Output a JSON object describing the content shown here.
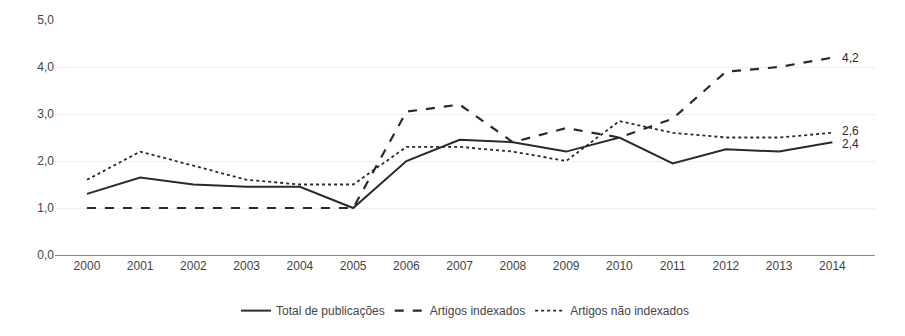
{
  "chart_data": {
    "type": "line",
    "x": [
      2000,
      2001,
      2002,
      2003,
      2004,
      2005,
      2006,
      2007,
      2008,
      2009,
      2010,
      2011,
      2012,
      2013,
      2014
    ],
    "series": [
      {
        "name": "Total de publicações",
        "color": "#2a2a2a",
        "line_style": "solid",
        "values": [
          1.3,
          1.65,
          1.5,
          1.45,
          1.45,
          1.0,
          2.0,
          2.45,
          2.4,
          2.2,
          2.5,
          1.95,
          2.25,
          2.2,
          2.4
        ]
      },
      {
        "name": "Artigos indexados",
        "color": "#2a2a2a",
        "line_style": "dashed",
        "values": [
          1.0,
          1.0,
          1.0,
          1.0,
          1.0,
          1.0,
          3.05,
          3.2,
          2.4,
          2.7,
          2.5,
          2.9,
          3.9,
          4.0,
          4.2
        ]
      },
      {
        "name": "Artigos não indexados",
        "color": "#2a2a2a",
        "line_style": "dotted",
        "values": [
          1.6,
          2.2,
          1.9,
          1.6,
          1.5,
          1.5,
          2.3,
          2.3,
          2.2,
          2.0,
          2.85,
          2.6,
          2.5,
          2.5,
          2.6
        ]
      }
    ],
    "annotations": [
      {
        "text": "4,2",
        "x": 2014,
        "y": 4.2
      },
      {
        "text": "2,6",
        "x": 2014,
        "y": 2.6
      },
      {
        "text": "2,4",
        "x": 2014,
        "y": 2.4
      }
    ],
    "xlim": [
      1999.4,
      2014.8
    ],
    "xticks": [
      2000,
      2001,
      2002,
      2003,
      2004,
      2005,
      2006,
      2007,
      2008,
      2009,
      2010,
      2011,
      2012,
      2013,
      2014
    ],
    "ylim": [
      0.0,
      5.0
    ],
    "yticks": [
      {
        "value": 0.0,
        "label": "0,0"
      },
      {
        "value": 1.0,
        "label": "1,0"
      },
      {
        "value": 2.0,
        "label": "2,0"
      },
      {
        "value": 3.0,
        "label": "3,0"
      },
      {
        "value": 4.0,
        "label": "4,0"
      },
      {
        "value": 5.0,
        "label": "5,0"
      }
    ],
    "grid": true,
    "legend": "bottom"
  }
}
